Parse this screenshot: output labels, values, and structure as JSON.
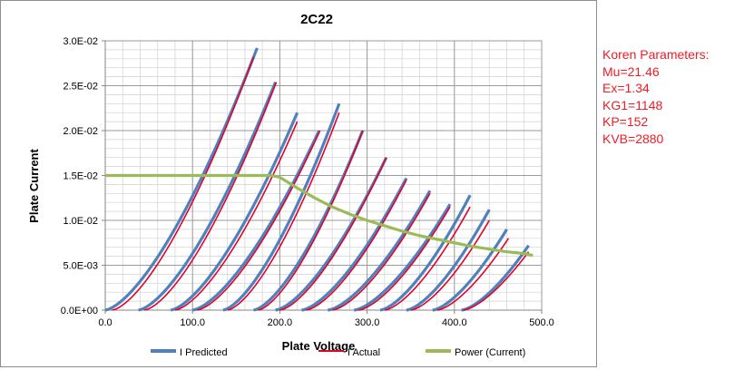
{
  "chart_data": {
    "type": "line",
    "title": "2C22",
    "xlabel": "Plate Voltage",
    "ylabel": "Plate Current",
    "xlim": [
      0,
      500
    ],
    "ylim": [
      0,
      0.03
    ],
    "x_ticks": [
      0,
      100,
      200,
      300,
      400,
      500
    ],
    "x_tick_labels": [
      "0.0",
      "100.0",
      "200.0",
      "300.0",
      "400.0",
      "500.0"
    ],
    "y_ticks": [
      0,
      0.005,
      0.01,
      0.015,
      0.02,
      0.025,
      0.03
    ],
    "y_tick_labels": [
      "0.0E+00",
      "5.0E-03",
      "1.0E-02",
      "1.5E-02",
      "2.0E-02",
      "2.5E-02",
      "3.0E-02"
    ],
    "grid": true,
    "legend_position": "bottom",
    "legend": [
      "I Predicted",
      "I Actual",
      "Power (Current)"
    ],
    "colors": {
      "predicted": "#4f81bd",
      "actual": "#e3002b",
      "power": "#9bbb59"
    },
    "curve_exponent": 1.5,
    "predicted_curves": [
      {
        "v0": 0,
        "v_end": 174,
        "i_end": 0.0292
      },
      {
        "v0": 38,
        "v_end": 195,
        "i_end": 0.0254
      },
      {
        "v0": 75,
        "v_end": 220,
        "i_end": 0.022
      },
      {
        "v0": 100,
        "v_end": 245,
        "i_end": 0.02
      },
      {
        "v0": 135,
        "v_end": 268,
        "i_end": 0.023
      },
      {
        "v0": 170,
        "v_end": 295,
        "i_end": 0.02
      },
      {
        "v0": 195,
        "v_end": 322,
        "i_end": 0.017
      },
      {
        "v0": 225,
        "v_end": 345,
        "i_end": 0.0147
      },
      {
        "v0": 255,
        "v_end": 372,
        "i_end": 0.0133
      },
      {
        "v0": 285,
        "v_end": 395,
        "i_end": 0.0118
      },
      {
        "v0": 315,
        "v_end": 418,
        "i_end": 0.0128
      },
      {
        "v0": 345,
        "v_end": 440,
        "i_end": 0.0112
      },
      {
        "v0": 375,
        "v_end": 460,
        "i_end": 0.009
      },
      {
        "v0": 408,
        "v_end": 485,
        "i_end": 0.0072
      }
    ],
    "actual_curves": [
      {
        "v0": 8,
        "v_end": 170,
        "i_end": 0.0282
      },
      {
        "v0": 45,
        "v_end": 196,
        "i_end": 0.0254
      },
      {
        "v0": 80,
        "v_end": 220,
        "i_end": 0.021
      },
      {
        "v0": 105,
        "v_end": 246,
        "i_end": 0.02
      },
      {
        "v0": 140,
        "v_end": 268,
        "i_end": 0.022
      },
      {
        "v0": 175,
        "v_end": 295,
        "i_end": 0.02
      },
      {
        "v0": 200,
        "v_end": 322,
        "i_end": 0.017
      },
      {
        "v0": 230,
        "v_end": 345,
        "i_end": 0.0145
      },
      {
        "v0": 260,
        "v_end": 372,
        "i_end": 0.013
      },
      {
        "v0": 290,
        "v_end": 395,
        "i_end": 0.0115
      },
      {
        "v0": 320,
        "v_end": 418,
        "i_end": 0.0115
      },
      {
        "v0": 350,
        "v_end": 440,
        "i_end": 0.01
      },
      {
        "v0": 380,
        "v_end": 462,
        "i_end": 0.008
      },
      {
        "v0": 410,
        "v_end": 485,
        "i_end": 0.0065
      }
    ],
    "power_curve": {
      "x": [
        0,
        50,
        100,
        150,
        190,
        200,
        210,
        220,
        240,
        260,
        280,
        300,
        320,
        340,
        360,
        380,
        400,
        420,
        440,
        460,
        480,
        490
      ],
      "y": [
        0.015,
        0.015,
        0.015,
        0.015,
        0.015,
        0.0148,
        0.0142,
        0.0136,
        0.0125,
        0.0115,
        0.0107,
        0.01,
        0.0094,
        0.0088,
        0.0083,
        0.0079,
        0.0075,
        0.0071,
        0.0068,
        0.0065,
        0.0063,
        0.0061
      ]
    }
  },
  "side_panel": {
    "heading": "Koren Parameters:",
    "lines": [
      "Mu=21.46",
      "Ex=1.34",
      "KG1=1148",
      "KP=152",
      "KVB=2880"
    ]
  }
}
